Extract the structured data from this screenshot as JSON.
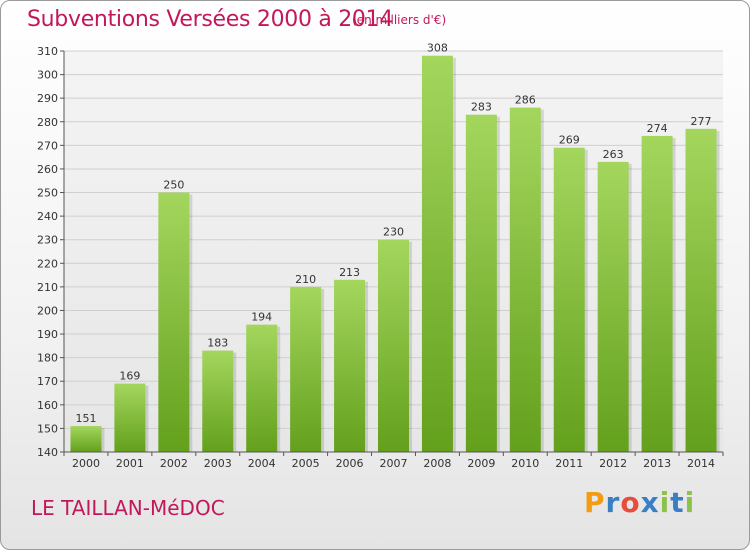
{
  "header": {
    "title": "Subventions Versées 2000 à 2014",
    "subtitle": "(en milliers d'€)"
  },
  "footer": {
    "commune": "LE TAILLAN-MéDOC",
    "logo_letters": [
      "P",
      "r",
      "o",
      "x",
      "i",
      "t",
      "i"
    ],
    "logo_colors": [
      "#f39c12",
      "#3a7fc4",
      "#e74c3c",
      "#3a7fc4",
      "#8bc34a",
      "#3a7fc4",
      "#8bc34a"
    ]
  },
  "chart_data": {
    "type": "bar",
    "title": "Subventions Versées 2000 à 2014",
    "subtitle": "(en milliers d'€)",
    "categories": [
      "2000",
      "2001",
      "2002",
      "2003",
      "2004",
      "2005",
      "2006",
      "2007",
      "2008",
      "2009",
      "2010",
      "2011",
      "2012",
      "2013",
      "2014"
    ],
    "values": [
      151,
      169,
      250,
      183,
      194,
      210,
      213,
      230,
      308,
      283,
      286,
      269,
      263,
      274,
      277
    ],
    "ylim": [
      140,
      310
    ],
    "yticks": [
      140,
      150,
      160,
      170,
      180,
      190,
      200,
      210,
      220,
      230,
      240,
      250,
      260,
      270,
      280,
      290,
      300,
      310
    ],
    "grid": true,
    "colors": {
      "bar_top": "#a4d65e",
      "bar_bottom": "#63a01c",
      "grid": "#cfcfcf",
      "text_accent": "#c2185b"
    }
  }
}
